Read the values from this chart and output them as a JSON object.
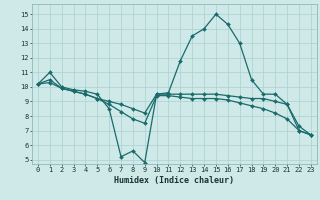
{
  "title": "",
  "xlabel": "Humidex (Indice chaleur)",
  "bg_color": "#cfe8e8",
  "grid_color": "#aad0d0",
  "line_color": "#1a6b6b",
  "marker_color": "#1a6b6b",
  "xlim": [
    -0.5,
    23.5
  ],
  "ylim": [
    4.7,
    15.7
  ],
  "yticks": [
    5,
    6,
    7,
    8,
    9,
    10,
    11,
    12,
    13,
    14,
    15
  ],
  "xticks": [
    0,
    1,
    2,
    3,
    4,
    5,
    6,
    7,
    8,
    9,
    10,
    11,
    12,
    13,
    14,
    15,
    16,
    17,
    18,
    19,
    20,
    21,
    22,
    23
  ],
  "line1_x": [
    0,
    1,
    2,
    3,
    4,
    5,
    6,
    7,
    8,
    9,
    10,
    11,
    12,
    13,
    14,
    15,
    16,
    17,
    18,
    19,
    20,
    21,
    22,
    23
  ],
  "line1_y": [
    10.2,
    11.0,
    10.0,
    9.8,
    9.7,
    9.5,
    8.5,
    5.2,
    5.6,
    4.8,
    9.5,
    9.6,
    11.8,
    13.5,
    14.0,
    15.0,
    14.3,
    13.0,
    10.5,
    9.5,
    9.5,
    8.8,
    7.3,
    6.7
  ],
  "line2_x": [
    0,
    1,
    2,
    3,
    4,
    5,
    6,
    7,
    8,
    9,
    10,
    11,
    12,
    13,
    14,
    15,
    16,
    17,
    18,
    19,
    20,
    21,
    22,
    23
  ],
  "line2_y": [
    10.2,
    10.5,
    9.9,
    9.7,
    9.5,
    9.2,
    9.0,
    8.8,
    8.5,
    8.2,
    9.5,
    9.5,
    9.5,
    9.5,
    9.5,
    9.5,
    9.4,
    9.3,
    9.2,
    9.2,
    9.0,
    8.8,
    7.0,
    6.7
  ],
  "line3_x": [
    0,
    1,
    2,
    3,
    4,
    5,
    6,
    7,
    8,
    9,
    10,
    11,
    12,
    13,
    14,
    15,
    16,
    17,
    18,
    19,
    20,
    21,
    22,
    23
  ],
  "line3_y": [
    10.2,
    10.3,
    9.9,
    9.7,
    9.5,
    9.2,
    8.8,
    8.3,
    7.8,
    7.5,
    9.4,
    9.4,
    9.3,
    9.2,
    9.2,
    9.2,
    9.1,
    8.9,
    8.7,
    8.5,
    8.2,
    7.8,
    7.0,
    6.7
  ]
}
